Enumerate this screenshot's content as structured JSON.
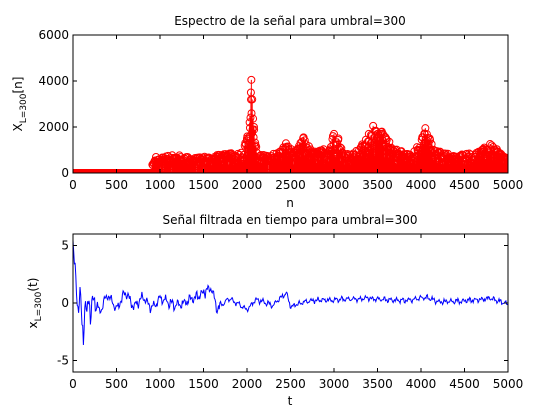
{
  "chart_data": [
    {
      "type": "stem",
      "title": "Espectro de la señal para umbral=300",
      "xlabel": "n",
      "ylabel": {
        "main": "X",
        "sub": "L=300",
        "suffix": "[n]"
      },
      "xlim": [
        0,
        5000
      ],
      "ylim": [
        0,
        6000
      ],
      "xticks": [
        0,
        500,
        1000,
        1500,
        2000,
        2500,
        3000,
        3500,
        4000,
        4500,
        5000
      ],
      "yticks": [
        0,
        2000,
        4000,
        6000
      ],
      "grid": false,
      "color": "#ff0000",
      "marker": "circle",
      "note_threshold": 300,
      "envelope": [
        [
          0,
          0
        ],
        [
          780,
          0
        ],
        [
          800,
          250
        ],
        [
          850,
          150
        ],
        [
          900,
          300
        ],
        [
          950,
          700
        ],
        [
          1000,
          650
        ],
        [
          1100,
          750
        ],
        [
          1200,
          800
        ],
        [
          1300,
          700
        ],
        [
          1400,
          650
        ],
        [
          1500,
          700
        ],
        [
          1600,
          750
        ],
        [
          1700,
          800
        ],
        [
          1800,
          850
        ],
        [
          1900,
          900
        ],
        [
          1950,
          1000
        ],
        [
          2000,
          1500
        ],
        [
          2030,
          2200
        ],
        [
          2045,
          3500
        ],
        [
          2050,
          4050
        ],
        [
          2060,
          3200
        ],
        [
          2080,
          2000
        ],
        [
          2100,
          1200
        ],
        [
          2150,
          800
        ],
        [
          2250,
          750
        ],
        [
          2350,
          900
        ],
        [
          2400,
          1100
        ],
        [
          2450,
          1300
        ],
        [
          2500,
          1100
        ],
        [
          2550,
          900
        ],
        [
          2600,
          1200
        ],
        [
          2650,
          1550
        ],
        [
          2700,
          1300
        ],
        [
          2750,
          900
        ],
        [
          2850,
          1000
        ],
        [
          2950,
          1300
        ],
        [
          3000,
          1700
        ],
        [
          3050,
          1500
        ],
        [
          3100,
          1000
        ],
        [
          3200,
          800
        ],
        [
          3300,
          1100
        ],
        [
          3400,
          1700
        ],
        [
          3450,
          2050
        ],
        [
          3500,
          1700
        ],
        [
          3550,
          1800
        ],
        [
          3600,
          1500
        ],
        [
          3700,
          1100
        ],
        [
          3800,
          900
        ],
        [
          3900,
          800
        ],
        [
          4000,
          1400
        ],
        [
          4050,
          1950
        ],
        [
          4100,
          1500
        ],
        [
          4150,
          1000
        ],
        [
          4300,
          850
        ],
        [
          4400,
          700
        ],
        [
          4500,
          900
        ],
        [
          4600,
          800
        ],
        [
          4700,
          1000
        ],
        [
          4780,
          1300
        ],
        [
          4850,
          1100
        ],
        [
          4950,
          800
        ],
        [
          5000,
          700
        ]
      ]
    },
    {
      "type": "line",
      "title": "Señal filtrada en tiempo para umbral=300",
      "xlabel": "t",
      "ylabel": {
        "main": "x",
        "sub": "L=300",
        "suffix": "(t)"
      },
      "xlim": [
        0,
        5000
      ],
      "ylim": [
        -6,
        6
      ],
      "xticks": [
        0,
        500,
        1000,
        1500,
        2000,
        2500,
        3000,
        3500,
        4000,
        4500,
        5000
      ],
      "yticks": [
        -5,
        0,
        5
      ],
      "grid": false,
      "color": "#0000ff",
      "keypoints": [
        [
          0,
          5.2
        ],
        [
          20,
          3.0
        ],
        [
          40,
          1.2
        ],
        [
          60,
          -0.8
        ],
        [
          80,
          0.6
        ],
        [
          100,
          -1.5
        ],
        [
          120,
          -2.8
        ],
        [
          140,
          0.3
        ],
        [
          160,
          -1.2
        ],
        [
          180,
          0.9
        ],
        [
          200,
          -1.0
        ],
        [
          250,
          0.5
        ],
        [
          300,
          -0.9
        ],
        [
          400,
          0.8
        ],
        [
          500,
          -0.6
        ],
        [
          600,
          1.0
        ],
        [
          700,
          -0.4
        ],
        [
          800,
          0.6
        ],
        [
          900,
          -0.5
        ],
        [
          1000,
          0.4
        ],
        [
          1200,
          -0.3
        ],
        [
          1400,
          0.5
        ],
        [
          1600,
          1.3
        ],
        [
          1650,
          -0.5
        ],
        [
          1800,
          0.4
        ],
        [
          2000,
          -0.6
        ],
        [
          2100,
          0.3
        ],
        [
          2300,
          -0.2
        ],
        [
          2450,
          0.9
        ],
        [
          2500,
          -0.3
        ],
        [
          2700,
          0.2
        ],
        [
          3000,
          0.3
        ],
        [
          3400,
          0.4
        ],
        [
          3800,
          0.2
        ],
        [
          4050,
          0.5
        ],
        [
          4200,
          0.1
        ],
        [
          4500,
          0.2
        ],
        [
          4800,
          0.4
        ],
        [
          5000,
          -0.1
        ]
      ]
    }
  ]
}
